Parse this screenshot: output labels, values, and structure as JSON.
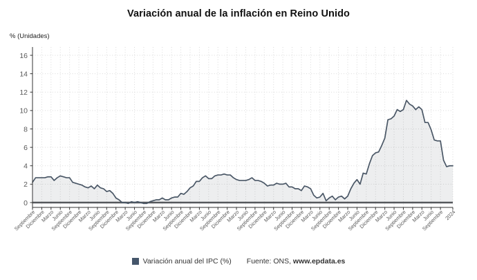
{
  "title": "Variación anual de la inflación en Reino Unido",
  "y_axis_unit_label": "% (Unidades)",
  "legend": {
    "series_label": "Variación anual del IPC (%)",
    "marker_color": "#45566b"
  },
  "source": {
    "prefix": "Fuente: ONS, ",
    "site": "www.epdata.es"
  },
  "colors": {
    "line": "#4a5766",
    "fill": "rgba(74,88,102,0.10)",
    "grid": "#d9d9d9",
    "zero_line": "#55585c",
    "axis": "#333333",
    "tick_text": "#595959"
  },
  "chart_data": {
    "type": "area",
    "title": "Variación anual de la inflación en Reino Unido",
    "ylabel": "% (Unidades)",
    "xlabel": "",
    "grid": true,
    "legend_position": "bottom",
    "ylim": [
      -0.5,
      16.9
    ],
    "y_ticks": [
      0,
      2,
      4,
      6,
      8,
      10,
      12,
      14,
      16
    ],
    "x_tick_months": [
      0,
      3,
      6,
      9,
      12,
      15,
      18,
      21,
      24,
      27,
      30,
      33,
      36,
      39,
      42,
      45,
      48,
      51,
      54,
      57,
      60,
      63,
      66,
      69,
      72,
      75,
      78,
      81,
      84,
      87,
      90,
      93,
      96,
      99,
      102,
      105,
      108,
      111,
      114,
      117,
      120,
      123,
      126,
      129,
      132,
      136
    ],
    "x_tick_labels": [
      "Septiembre",
      "Diciembre",
      "Marzo",
      "Junio",
      "Septiembre",
      "Diciembre",
      "Marzo",
      "Junio",
      "Septiembre",
      "Diciembre",
      "Marzo",
      "Junio",
      "Septiembre",
      "Diciembre",
      "Marzo",
      "Junio",
      "Septiembre",
      "Diciembre",
      "Marzo",
      "Junio",
      "Septiembre",
      "Diciembre",
      "Marzo",
      "Junio",
      "Septiembre",
      "Diciembre",
      "Marzo",
      "Junio",
      "Septiembre",
      "Diciembre",
      "Marzo",
      "Junio",
      "Septiembre",
      "Diciembre",
      "Marzo",
      "Junio",
      "Septiembre",
      "Diciembre",
      "Marzo",
      "Junio",
      "Septiembre",
      "Diciembre",
      "Marzo",
      "Junio",
      "Septiembre",
      "2024"
    ],
    "series": [
      {
        "name": "Variación anual del IPC (%)",
        "values": [
          2.2,
          2.7,
          2.7,
          2.7,
          2.7,
          2.8,
          2.8,
          2.4,
          2.7,
          2.9,
          2.8,
          2.7,
          2.7,
          2.2,
          2.1,
          2.0,
          1.9,
          1.7,
          1.6,
          1.8,
          1.5,
          1.9,
          1.6,
          1.5,
          1.2,
          1.3,
          1.0,
          0.5,
          0.3,
          0.0,
          0.0,
          -0.1,
          0.1,
          0.0,
          0.1,
          0.0,
          -0.1,
          -0.1,
          0.1,
          0.2,
          0.3,
          0.3,
          0.5,
          0.3,
          0.3,
          0.5,
          0.6,
          0.6,
          1.0,
          0.9,
          1.2,
          1.6,
          1.8,
          2.3,
          2.3,
          2.7,
          2.9,
          2.6,
          2.6,
          2.9,
          3.0,
          3.0,
          3.1,
          3.0,
          3.0,
          2.7,
          2.5,
          2.4,
          2.4,
          2.4,
          2.5,
          2.7,
          2.4,
          2.4,
          2.3,
          2.1,
          1.8,
          1.9,
          1.9,
          2.1,
          2.0,
          2.0,
          2.1,
          1.7,
          1.7,
          1.5,
          1.5,
          1.3,
          1.8,
          1.7,
          1.5,
          0.8,
          0.5,
          0.6,
          1.0,
          0.2,
          0.5,
          0.7,
          0.3,
          0.6,
          0.7,
          0.4,
          0.7,
          1.5,
          2.1,
          2.5,
          2.0,
          3.2,
          3.1,
          4.2,
          5.1,
          5.4,
          5.5,
          6.2,
          7.0,
          9.0,
          9.1,
          9.4,
          10.1,
          9.9,
          10.1,
          11.1,
          10.7,
          10.5,
          10.1,
          10.4,
          10.1,
          8.7,
          8.7,
          7.9,
          6.8,
          6.7,
          6.7,
          4.6,
          3.9,
          4.0,
          4.0
        ]
      }
    ]
  }
}
